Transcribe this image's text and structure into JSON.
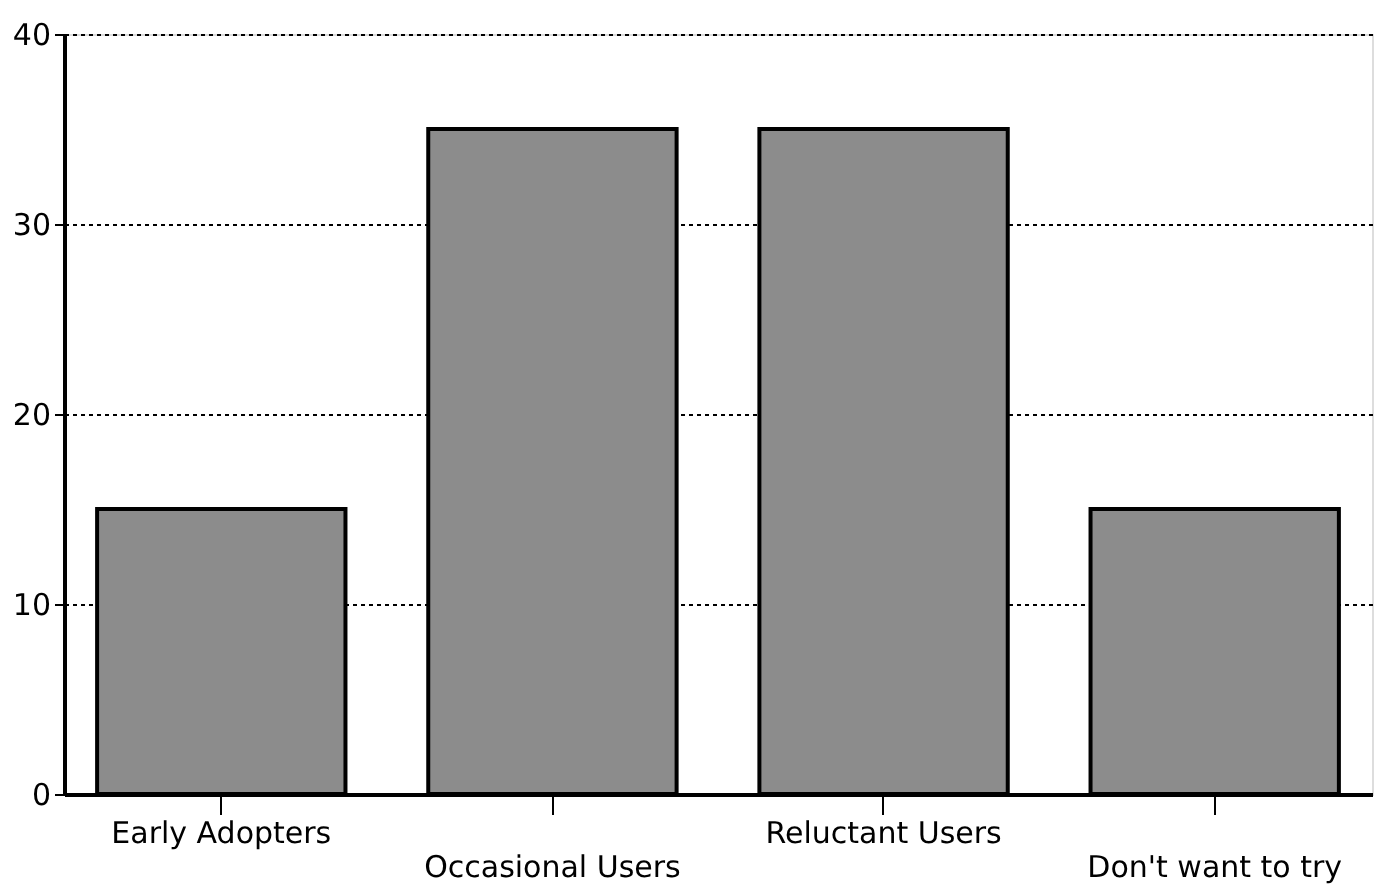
{
  "chart_data": {
    "type": "bar",
    "categories": [
      "Early Adopters",
      "Occasional Users",
      "Reluctant Users",
      "Don't want to try"
    ],
    "values": [
      15,
      35,
      35,
      15
    ],
    "color": "#8c8c8c",
    "ylim": [
      0,
      40
    ],
    "yticks": [
      0,
      10,
      20,
      30,
      40
    ],
    "grid": "y"
  }
}
